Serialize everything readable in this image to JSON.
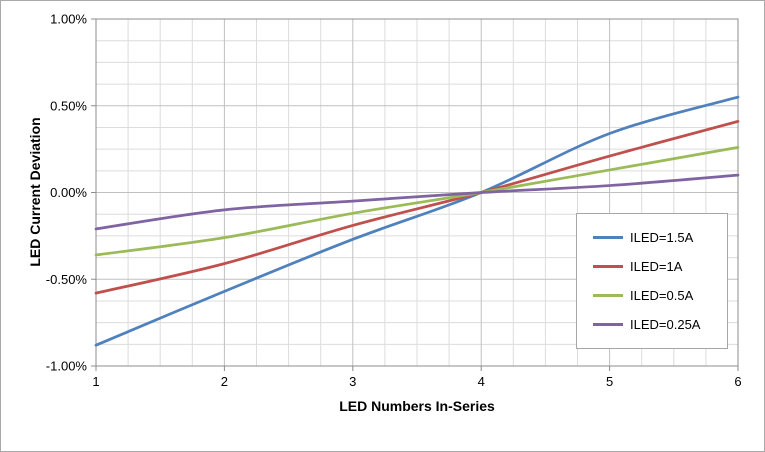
{
  "chart_data": {
    "type": "line",
    "title": "",
    "xlabel": "LED Numbers In-Series",
    "ylabel": "LED Current Deviation",
    "xlim": [
      1,
      6
    ],
    "ylim": [
      -1,
      1
    ],
    "grid": true,
    "legend_position": "inside-right",
    "x_minor_step": 0.25,
    "x_major_step": 1,
    "y_minor_step": 0.125,
    "y_major_step": 0.5,
    "x": [
      1,
      2,
      3,
      4,
      5,
      6
    ],
    "x_tick_labels": [
      "1",
      "2",
      "3",
      "4",
      "5",
      "6"
    ],
    "y_tick_values": [
      -1,
      -0.5,
      0,
      0.5,
      1
    ],
    "y_tick_labels": [
      "-1.00%",
      "-0.50%",
      "0.00%",
      "0.50%",
      "1.00%"
    ],
    "series": [
      {
        "name": "ILED=1.5A",
        "color": "#4F81BD",
        "values": [
          -0.88,
          -0.57,
          -0.27,
          0.0,
          0.34,
          0.55
        ]
      },
      {
        "name": "ILED=1A",
        "color": "#C0504D",
        "values": [
          -0.58,
          -0.41,
          -0.19,
          0.0,
          0.21,
          0.41
        ]
      },
      {
        "name": "ILED=0.5A",
        "color": "#9BBB59",
        "values": [
          -0.36,
          -0.26,
          -0.12,
          0.0,
          0.13,
          0.26
        ]
      },
      {
        "name": "ILED=0.25A",
        "color": "#8064A2",
        "values": [
          -0.21,
          -0.1,
          -0.05,
          0.0,
          0.04,
          0.1
        ]
      }
    ],
    "colors": {
      "grid_minor": "#DCDCDC",
      "grid_major": "#C0C0C0",
      "axis": "#8C8C8C",
      "text": "#000000"
    }
  }
}
